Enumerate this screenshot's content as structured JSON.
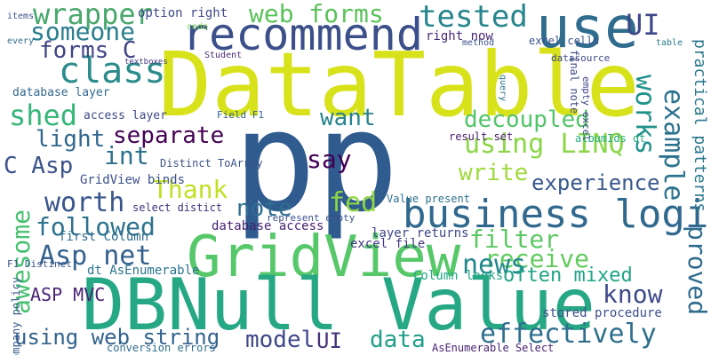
{
  "words": [
    {
      "text": "DataTable",
      "color": "#d8e21a"
    },
    {
      "text": "p",
      "color": "#2f5b8f"
    },
    {
      "text": "p",
      "color": "#2f5b8f"
    },
    {
      "text": "GridView",
      "color": "#57c86a"
    },
    {
      "text": "DBNull Value",
      "color": "#27a884"
    },
    {
      "text": "recommend",
      "color": "#3b4f8a"
    },
    {
      "text": "use",
      "color": "#2f6c8e"
    },
    {
      "text": "business logic",
      "color": "#31698e"
    },
    {
      "text": "class",
      "color": "#2b8c8b"
    },
    {
      "text": "wrapper",
      "color": "#4aa86d"
    },
    {
      "text": "web forms",
      "color": "#5bc35a"
    },
    {
      "text": "tested",
      "color": "#27858d"
    },
    {
      "text": "UI",
      "color": "#3f4788"
    },
    {
      "text": "someone",
      "color": "#2a7f8e"
    },
    {
      "text": "forms C",
      "color": "#414487"
    },
    {
      "text": "option right",
      "color": "#3e4a89"
    },
    {
      "text": "right now",
      "color": "#482878"
    },
    {
      "text": "excel cells",
      "color": "#3b528b"
    },
    {
      "text": "final note",
      "color": "#3e4c8a"
    },
    {
      "text": "works",
      "color": "#21918c"
    },
    {
      "text": "example",
      "color": "#2c738e"
    },
    {
      "text": "practical patterns",
      "color": "#2a788e"
    },
    {
      "text": "shed",
      "color": "#35b779"
    },
    {
      "text": "want",
      "color": "#26828e"
    },
    {
      "text": "decoupled",
      "color": "#52c569"
    },
    {
      "text": "separate",
      "color": "#440154"
    },
    {
      "text": "light",
      "color": "#31688e"
    },
    {
      "text": "int",
      "color": "#2d708e"
    },
    {
      "text": "C Asp",
      "color": "#3b528b"
    },
    {
      "text": "say",
      "color": "#440154"
    },
    {
      "text": "using LINQ",
      "color": "#8bd646"
    },
    {
      "text": "Thank",
      "color": "#c2df23"
    },
    {
      "text": "write",
      "color": "#9fda3a"
    },
    {
      "text": "experience",
      "color": "#38598c"
    },
    {
      "text": "worth",
      "color": "#39558c"
    },
    {
      "text": "fed",
      "color": "#8ed645"
    },
    {
      "text": "note",
      "color": "#2e6e8e"
    },
    {
      "text": "awesome",
      "color": "#46c06f"
    },
    {
      "text": "Asp net",
      "color": "#34618d"
    },
    {
      "text": "followed",
      "color": "#2c728e"
    },
    {
      "text": "filter",
      "color": "#5cc863"
    },
    {
      "text": "receive",
      "color": "#62cb5f"
    },
    {
      "text": "proved",
      "color": "#2f6b8e"
    },
    {
      "text": "news",
      "color": "#24878e"
    },
    {
      "text": "know",
      "color": "#3e4a89"
    },
    {
      "text": "often mixed",
      "color": "#20a486"
    },
    {
      "text": "ASP MVC",
      "color": "#482475"
    },
    {
      "text": "using web string",
      "color": "#33638d"
    },
    {
      "text": "model",
      "color": "#3f4889"
    },
    {
      "text": "UI",
      "color": "#46327e"
    },
    {
      "text": "data",
      "color": "#1f9e89"
    },
    {
      "text": "effectively",
      "color": "#2e6f8e"
    },
    {
      "text": "stored procedure",
      "color": "#3c508b"
    },
    {
      "text": "GridView binds",
      "color": "#3b518b"
    },
    {
      "text": "database access",
      "color": "#482173"
    },
    {
      "text": "layer returns",
      "color": "#3f4788"
    },
    {
      "text": "excel file",
      "color": "#443a83"
    },
    {
      "text": "first Column",
      "color": "#2f6c8e"
    },
    {
      "text": "dt AsEnumerable",
      "color": "#2b748e"
    },
    {
      "text": "Column looks",
      "color": "#22a884"
    },
    {
      "text": "database layer",
      "color": "#31688e"
    },
    {
      "text": "access layer",
      "color": "#3e4989"
    },
    {
      "text": "Distinct ToArray",
      "color": "#3a538b"
    },
    {
      "text": "select distict",
      "color": "#46327e"
    },
    {
      "text": "Value present",
      "color": "#2c718e"
    },
    {
      "text": "result set",
      "color": "#481a6c"
    },
    {
      "text": "albumIds dt",
      "color": "#27ad81"
    },
    {
      "text": "company policy",
      "color": "#38598c"
    },
    {
      "text": "AsEnumerable Select",
      "color": "#482475"
    },
    {
      "text": "conversion errors",
      "color": "#2e6e8e"
    },
    {
      "text": "F1 Distinct",
      "color": "#39568c"
    },
    {
      "text": "Field F1",
      "color": "#33638d"
    },
    {
      "text": "represent empty",
      "color": "#3a538b"
    },
    {
      "text": "empty excel",
      "color": "#3f4788"
    },
    {
      "text": "datasource",
      "color": "#3e4a89"
    },
    {
      "text": "items",
      "color": "#3b528b"
    },
    {
      "text": "code",
      "color": "#7ad151"
    },
    {
      "text": "Student",
      "color": "#482878"
    },
    {
      "text": "query",
      "color": "#2c728e"
    },
    {
      "text": "method",
      "color": "#3b528b"
    },
    {
      "text": "table",
      "color": "#2a788e"
    },
    {
      "text": "every",
      "color": "#2f6b8e"
    },
    {
      "text": "textboxes",
      "color": "#443983"
    }
  ]
}
